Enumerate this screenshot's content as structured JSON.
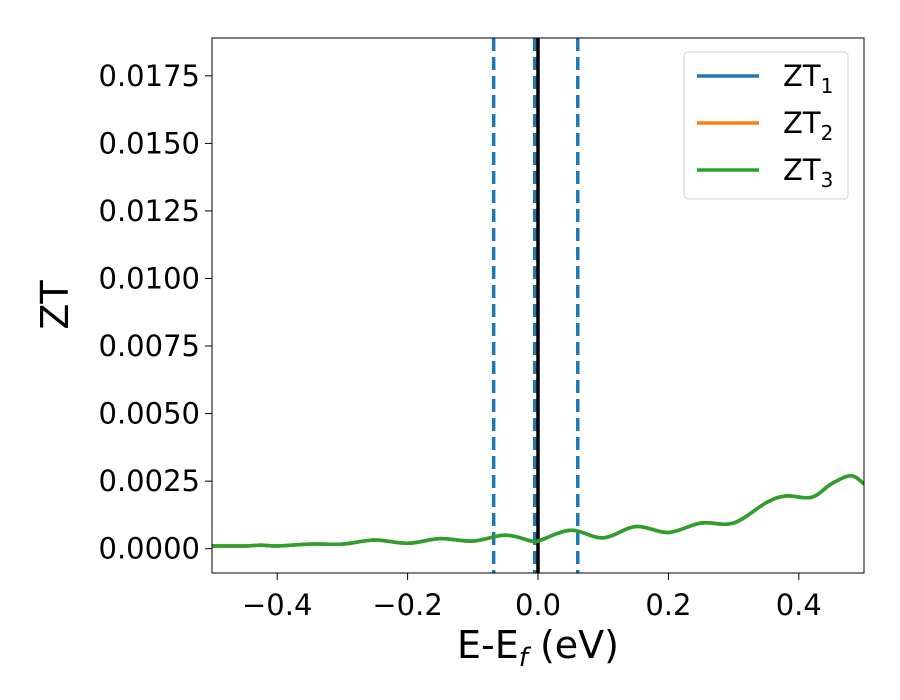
{
  "chart_data": {
    "type": "line",
    "xlabel_main": "E-E",
    "xlabel_sub": "f",
    "xlabel_unit": " (eV)",
    "ylabel": "ZT",
    "xlim": [
      -0.5,
      0.5
    ],
    "ylim": [
      -0.0009,
      0.0189
    ],
    "xticks": [
      -0.4,
      -0.2,
      0.0,
      0.2,
      0.4
    ],
    "xtick_labels": [
      "−0.4",
      "−0.2",
      "0.0",
      "0.2",
      "0.4"
    ],
    "yticks": [
      0.0,
      0.0025,
      0.005,
      0.0075,
      0.01,
      0.0125,
      0.015,
      0.0175
    ],
    "ytick_labels": [
      "0.0000",
      "0.0025",
      "0.0050",
      "0.0075",
      "0.0100",
      "0.0125",
      "0.0150",
      "0.0175"
    ],
    "vertical_lines": [
      {
        "x": -0.068,
        "style": "dashed",
        "color": "#1f77b4"
      },
      {
        "x": -0.005,
        "style": "dashed",
        "color": "#1f77b4"
      },
      {
        "x": 0.0,
        "style": "solid",
        "color": "#000000"
      },
      {
        "x": 0.061,
        "style": "dashed",
        "color": "#1f77b4"
      }
    ],
    "legend_position": "top-right",
    "x": [
      -0.5,
      -0.45,
      -0.425,
      -0.4,
      -0.35,
      -0.3,
      -0.25,
      -0.2,
      -0.15,
      -0.1,
      -0.05,
      -0.01,
      0.0,
      0.05,
      0.1,
      0.15,
      0.2,
      0.25,
      0.3,
      0.35,
      0.38,
      0.42,
      0.45,
      0.48,
      0.5
    ],
    "series": [
      {
        "name": "ZT",
        "sub": "1",
        "color": "#1f77b4",
        "values": [
          0.0001,
          0.0001,
          0.00013,
          0.0001,
          0.00017,
          0.00017,
          0.00032,
          0.0002,
          0.00037,
          0.00028,
          0.0005,
          0.00028,
          0.00028,
          0.00068,
          0.0004,
          0.00082,
          0.0006,
          0.00095,
          0.00095,
          0.0017,
          0.00195,
          0.0019,
          0.0024,
          0.0027,
          0.0024
        ]
      },
      {
        "name": "ZT",
        "sub": "2",
        "color": "#ff7f0e",
        "values": [
          0.0001,
          0.0001,
          0.00013,
          0.0001,
          0.00017,
          0.00017,
          0.00032,
          0.0002,
          0.00037,
          0.00028,
          0.0005,
          0.00028,
          0.00028,
          0.00068,
          0.0004,
          0.00082,
          0.0006,
          0.00095,
          0.00095,
          0.0017,
          0.00195,
          0.0019,
          0.0024,
          0.0027,
          0.0024
        ]
      },
      {
        "name": "ZT",
        "sub": "3",
        "color": "#2ca02c",
        "values": [
          0.0001,
          0.0001,
          0.00013,
          0.0001,
          0.00017,
          0.00017,
          0.00032,
          0.0002,
          0.00037,
          0.00028,
          0.0005,
          0.00028,
          0.00028,
          0.00068,
          0.0004,
          0.00082,
          0.0006,
          0.00095,
          0.00095,
          0.0017,
          0.00195,
          0.0019,
          0.0024,
          0.0027,
          0.0024
        ]
      }
    ]
  }
}
